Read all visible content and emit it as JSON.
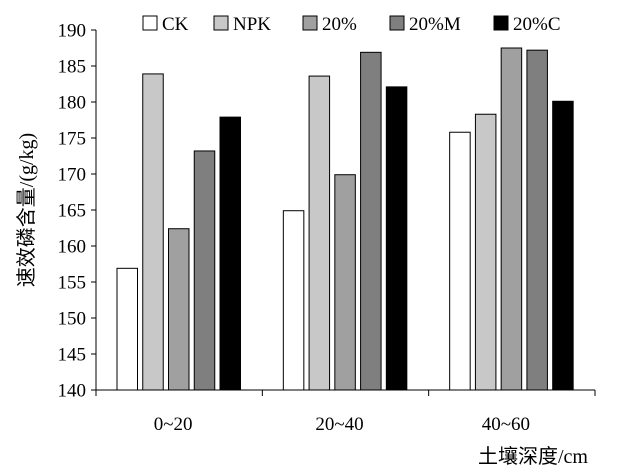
{
  "chart_data": {
    "type": "bar",
    "categories": [
      "0~20",
      "20~40",
      "40~60"
    ],
    "series": [
      {
        "name": "CK",
        "color": "#ffffff",
        "values": [
          156.9,
          164.9,
          175.8
        ]
      },
      {
        "name": "NPK",
        "color": "#c8c8c8",
        "values": [
          183.9,
          183.6,
          178.3
        ]
      },
      {
        "name": "20%",
        "color": "#a0a0a0",
        "values": [
          162.4,
          169.9,
          187.5
        ]
      },
      {
        "name": "20%M",
        "color": "#7f7f7f",
        "values": [
          173.2,
          186.9,
          187.2
        ]
      },
      {
        "name": "20%C",
        "color": "#000000",
        "values": [
          177.9,
          182.1,
          180.1
        ]
      }
    ],
    "xlabel": "土壤深度/cm",
    "ylabel": "速效磷含量/(g/kg)",
    "ylim": [
      140,
      190
    ],
    "yticks": [
      140,
      145,
      150,
      155,
      160,
      165,
      170,
      175,
      180,
      185,
      190
    ],
    "grid": false,
    "legend_position": "top"
  }
}
